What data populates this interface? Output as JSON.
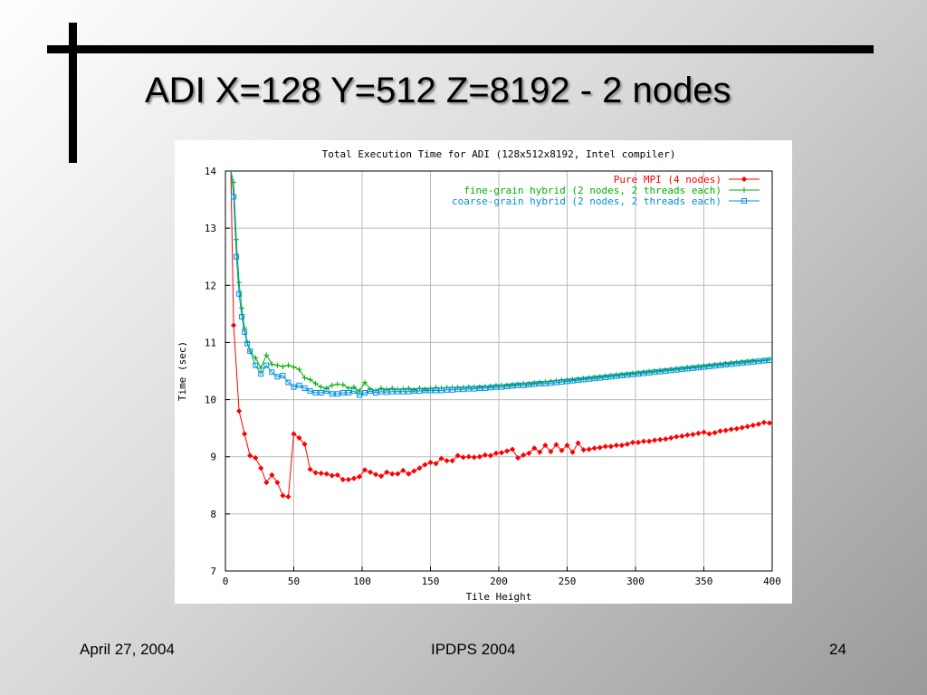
{
  "slide": {
    "title": "ADI X=128 Y=512 Z=8192 - 2 nodes",
    "footer_left": "April 27, 2004",
    "footer_center": "IPDPS 2004",
    "footer_right": "24"
  },
  "chart_data": {
    "type": "line",
    "title": "Total Execution Time for ADI (128x512x8192, Intel compiler)",
    "xlabel": "Tile Height",
    "ylabel": "Time (sec)",
    "xlim": [
      0,
      400
    ],
    "ylim": [
      7,
      14
    ],
    "xticks": [
      0,
      50,
      100,
      150,
      200,
      250,
      300,
      350,
      400
    ],
    "yticks": [
      7,
      8,
      9,
      10,
      11,
      12,
      13,
      14
    ],
    "grid": true,
    "legend_position": "top-right",
    "series": [
      {
        "name": "Pure MPI (4 nodes)",
        "color": "#ff0000",
        "marker": "diamond",
        "x": [
          4,
          6,
          10,
          14,
          18,
          22,
          26,
          30,
          34,
          38,
          42,
          46,
          50,
          54,
          58,
          62,
          66,
          70,
          74,
          78,
          82,
          86,
          90,
          94,
          98,
          102,
          106,
          110,
          114,
          118,
          122,
          126,
          130,
          134,
          138,
          142,
          146,
          150,
          154,
          158,
          162,
          166,
          170,
          174,
          178,
          182,
          186,
          190,
          194,
          198,
          202,
          206,
          210,
          214,
          218,
          222,
          226,
          230,
          234,
          238,
          242,
          246,
          250,
          254,
          258,
          262,
          266,
          270,
          274,
          278,
          282,
          286,
          290,
          294,
          298,
          302,
          306,
          310,
          314,
          318,
          322,
          326,
          330,
          334,
          338,
          342,
          346,
          350,
          354,
          358,
          362,
          366,
          370,
          374,
          378,
          382,
          386,
          390,
          394,
          398
        ],
        "y": [
          14.0,
          11.3,
          9.8,
          9.4,
          9.02,
          8.98,
          8.8,
          8.55,
          8.68,
          8.55,
          8.32,
          8.3,
          9.4,
          9.33,
          9.22,
          8.78,
          8.72,
          8.71,
          8.7,
          8.67,
          8.68,
          8.6,
          8.6,
          8.62,
          8.65,
          8.77,
          8.73,
          8.69,
          8.66,
          8.73,
          8.7,
          8.7,
          8.76,
          8.7,
          8.75,
          8.8,
          8.86,
          8.9,
          8.88,
          8.97,
          8.93,
          8.93,
          9.02,
          8.99,
          9.0,
          8.99,
          9.0,
          9.03,
          9.02,
          9.06,
          9.07,
          9.1,
          9.13,
          8.98,
          9.03,
          9.06,
          9.15,
          9.08,
          9.2,
          9.09,
          9.21,
          9.11,
          9.2,
          9.08,
          9.24,
          9.12,
          9.13,
          9.15,
          9.16,
          9.18,
          9.18,
          9.2,
          9.2,
          9.22,
          9.25,
          9.25,
          9.27,
          9.27,
          9.29,
          9.3,
          9.31,
          9.33,
          9.35,
          9.36,
          9.38,
          9.39,
          9.41,
          9.43,
          9.4,
          9.42,
          9.45,
          9.46,
          9.48,
          9.49,
          9.51,
          9.53,
          9.55,
          9.57,
          9.6,
          9.59
        ]
      },
      {
        "name": "fine-grain hybrid (2 nodes, 2 threads each)",
        "color": "#00b000",
        "marker": "plus",
        "x": [
          4,
          6,
          8,
          10,
          12,
          14,
          16,
          18,
          22,
          26,
          30,
          34,
          38,
          42,
          46,
          50,
          54,
          58,
          62,
          66,
          70,
          74,
          78,
          82,
          86,
          90,
          94,
          98,
          102,
          106,
          110,
          114,
          118,
          122,
          126,
          130,
          134,
          138,
          142,
          146,
          150,
          154,
          158,
          162,
          166,
          170,
          174,
          178,
          182,
          186,
          190,
          194,
          198,
          202,
          206,
          210,
          214,
          218,
          222,
          226,
          230,
          234,
          238,
          242,
          246,
          250,
          254,
          258,
          262,
          266,
          270,
          274,
          278,
          282,
          286,
          290,
          294,
          298,
          302,
          306,
          310,
          314,
          318,
          322,
          326,
          330,
          334,
          338,
          342,
          346,
          350,
          354,
          358,
          362,
          366,
          370,
          374,
          378,
          382,
          386,
          390,
          394,
          398
        ],
        "y": [
          14.0,
          13.8,
          12.8,
          12.05,
          11.6,
          11.25,
          11.0,
          10.85,
          10.73,
          10.55,
          10.78,
          10.62,
          10.6,
          10.58,
          10.6,
          10.57,
          10.53,
          10.38,
          10.35,
          10.28,
          10.22,
          10.2,
          10.25,
          10.27,
          10.26,
          10.2,
          10.22,
          10.15,
          10.3,
          10.18,
          10.16,
          10.2,
          10.18,
          10.2,
          10.18,
          10.19,
          10.2,
          10.17,
          10.2,
          10.18,
          10.19,
          10.21,
          10.2,
          10.21,
          10.21,
          10.21,
          10.21,
          10.22,
          10.22,
          10.22,
          10.23,
          10.23,
          10.24,
          10.25,
          10.25,
          10.26,
          10.27,
          10.28,
          10.28,
          10.29,
          10.3,
          10.31,
          10.32,
          10.33,
          10.34,
          10.34,
          10.35,
          10.36,
          10.37,
          10.38,
          10.39,
          10.4,
          10.41,
          10.42,
          10.43,
          10.44,
          10.45,
          10.46,
          10.47,
          10.48,
          10.49,
          10.5,
          10.51,
          10.52,
          10.53,
          10.54,
          10.55,
          10.56,
          10.57,
          10.58,
          10.59,
          10.6,
          10.61,
          10.62,
          10.63,
          10.64,
          10.65,
          10.66,
          10.67,
          10.68,
          10.68,
          10.69,
          10.7
        ]
      },
      {
        "name": "coarse-grain hybrid (2 nodes, 2 threads each)",
        "color": "#0090e0",
        "marker": "square",
        "x": [
          4,
          6,
          8,
          10,
          12,
          14,
          16,
          18,
          22,
          26,
          30,
          34,
          38,
          42,
          46,
          50,
          54,
          58,
          62,
          66,
          70,
          74,
          78,
          82,
          86,
          90,
          94,
          98,
          102,
          106,
          110,
          114,
          118,
          122,
          126,
          130,
          134,
          138,
          142,
          146,
          150,
          154,
          158,
          162,
          166,
          170,
          174,
          178,
          182,
          186,
          190,
          194,
          198,
          202,
          206,
          210,
          214,
          218,
          222,
          226,
          230,
          234,
          238,
          242,
          246,
          250,
          254,
          258,
          262,
          266,
          270,
          274,
          278,
          282,
          286,
          290,
          294,
          298,
          302,
          306,
          310,
          314,
          318,
          322,
          326,
          330,
          334,
          338,
          342,
          346,
          350,
          354,
          358,
          362,
          366,
          370,
          374,
          378,
          382,
          386,
          390,
          394,
          398
        ],
        "y": [
          14.0,
          13.55,
          12.5,
          11.85,
          11.45,
          11.18,
          10.98,
          10.85,
          10.6,
          10.45,
          10.6,
          10.48,
          10.4,
          10.42,
          10.3,
          10.22,
          10.25,
          10.2,
          10.15,
          10.12,
          10.12,
          10.15,
          10.1,
          10.1,
          10.12,
          10.12,
          10.15,
          10.08,
          10.12,
          10.15,
          10.12,
          10.14,
          10.13,
          10.14,
          10.14,
          10.14,
          10.14,
          10.15,
          10.15,
          10.16,
          10.16,
          10.16,
          10.16,
          10.17,
          10.17,
          10.18,
          10.18,
          10.19,
          10.19,
          10.2,
          10.2,
          10.21,
          10.22,
          10.22,
          10.23,
          10.24,
          10.25,
          10.25,
          10.26,
          10.27,
          10.28,
          10.28,
          10.29,
          10.3,
          10.31,
          10.32,
          10.33,
          10.34,
          10.35,
          10.36,
          10.37,
          10.38,
          10.39,
          10.4,
          10.41,
          10.42,
          10.43,
          10.44,
          10.45,
          10.46,
          10.47,
          10.48,
          10.49,
          10.5,
          10.51,
          10.52,
          10.53,
          10.54,
          10.55,
          10.56,
          10.57,
          10.58,
          10.59,
          10.6,
          10.61,
          10.62,
          10.63,
          10.64,
          10.65,
          10.66,
          10.67,
          10.68,
          10.69
        ]
      }
    ]
  }
}
